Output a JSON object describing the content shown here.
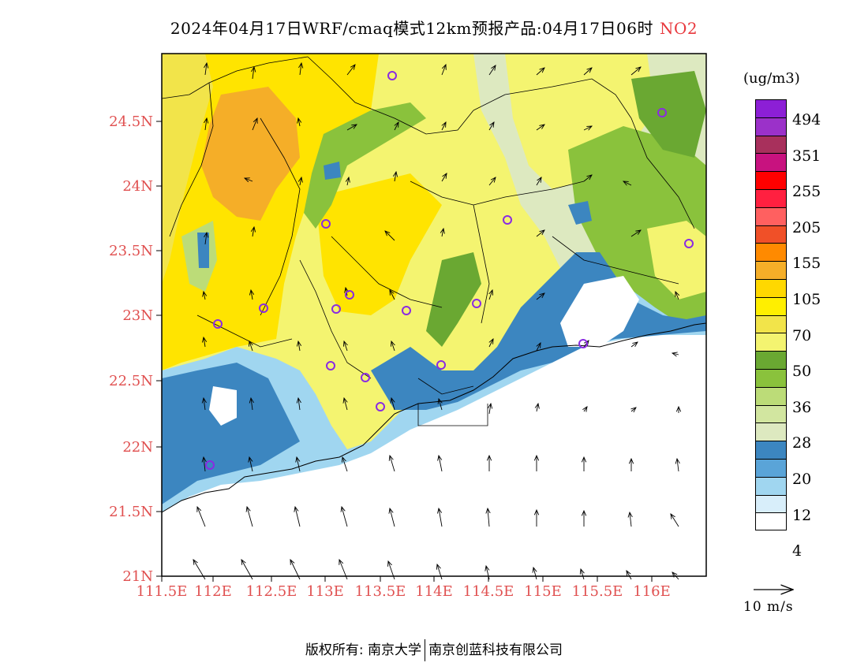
{
  "title": {
    "text": "2024年04月17日WRF/cmaq模式12km预报产品:04月17日06时",
    "pollutant": "NO2"
  },
  "map": {
    "lat_ticks": [
      "24.5N",
      "24N",
      "23.5N",
      "23N",
      "22.5N",
      "22N",
      "21.5N",
      "21N"
    ],
    "lon_ticks": [
      "111.5E",
      "112E",
      "112.5E",
      "113E",
      "113.5E",
      "114E",
      "114.5E",
      "115E",
      "115.5E",
      "116E"
    ]
  },
  "colorbar": {
    "unit": "(ug/m3)",
    "labels": [
      "494",
      "351",
      "255",
      "205",
      "155",
      "105",
      "70",
      "50",
      "36",
      "28",
      "20",
      "12",
      "4"
    ],
    "colors": [
      "#8c1fd6",
      "#9b31c9",
      "#a8305c",
      "#c8127f",
      "#ff0000",
      "#ff2040",
      "#ff6060",
      "#f05028",
      "#ff8a00",
      "#f5ae28",
      "#ffd800",
      "#ffef00",
      "#f2e44a",
      "#f4f470",
      "#6aa832",
      "#8ac23c",
      "#bcdc78",
      "#d2e6a0",
      "#dde9c0",
      "#3c86c0",
      "#5aa4d8",
      "#a0d6f0",
      "#d8eefa",
      "#ffffff"
    ]
  },
  "vector_legend": {
    "label": "10 m/s"
  },
  "footer": {
    "left": "版权所有: 南京大学",
    "right": "南京创蓝科技有限公司"
  }
}
